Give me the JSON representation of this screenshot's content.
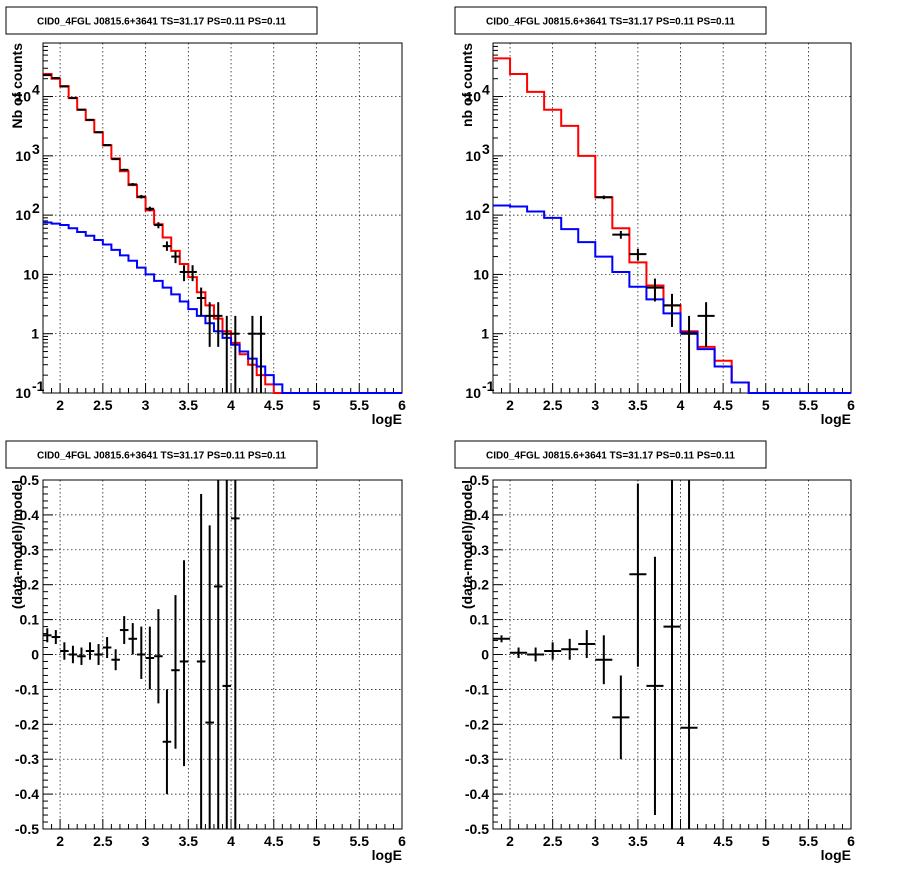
{
  "chart_data": [
    {
      "type": "line",
      "title": "CID0_4FGL J0815.6+3641 TS=31.17 PS=0.11 PS=0.11",
      "xlabel": "logE",
      "ylabel": "Nb of counts",
      "xlim": [
        1.8,
        6
      ],
      "ylim": [
        0.1,
        80000
      ],
      "yscale": "log",
      "grid": true,
      "xticks": [
        "2",
        "2.5",
        "3",
        "3.5",
        "4",
        "4.5",
        "5",
        "5.5",
        "6"
      ],
      "yticks": [
        "10^-1",
        "1",
        "10",
        "10^2",
        "10^3",
        "10^4"
      ],
      "bin_edges": [
        1.8,
        1.9,
        2.0,
        2.1,
        2.2,
        2.3,
        2.4,
        2.5,
        2.6,
        2.7,
        2.8,
        2.9,
        3.0,
        3.1,
        3.2,
        3.3,
        3.4,
        3.5,
        3.6,
        3.7,
        3.8,
        3.9,
        4.0,
        4.1,
        4.2,
        4.3,
        4.4,
        4.5,
        4.6,
        4.7,
        4.8,
        4.9,
        5.0,
        5.1,
        5.2,
        5.3,
        5.4,
        5.5,
        5.6,
        5.7,
        5.8,
        5.9,
        6.0
      ],
      "series": [
        {
          "color": "#ff0000",
          "style": "step",
          "values": [
            24000,
            20000,
            15000,
            9500,
            6000,
            4000,
            2500,
            1500,
            900,
            550,
            320,
            200,
            120,
            70,
            42,
            25,
            15,
            9,
            5,
            3,
            1.8,
            1.1,
            0.7,
            0.45,
            0.3,
            0.2,
            0.14,
            0.1,
            0.1,
            0.1,
            0.1,
            0.1,
            0.1,
            0.1,
            0.1,
            0.1,
            0.1,
            0.1,
            0.1,
            0.1,
            0.1,
            0.1
          ]
        },
        {
          "color": "#0000ff",
          "style": "step",
          "values": [
            75,
            72,
            68,
            60,
            52,
            45,
            38,
            32,
            26,
            21,
            17,
            13,
            10,
            7.8,
            6,
            4.6,
            3.5,
            2.6,
            2,
            1.5,
            1.1,
            0.85,
            0.65,
            0.5,
            0.38,
            0.28,
            0.2,
            0.14,
            0.1,
            0.1,
            0.1,
            0.1,
            0.1,
            0.1,
            0.1,
            0.1,
            0.1,
            0.1,
            0.1,
            0.1,
            0.1,
            0.1
          ]
        },
        {
          "color": "#000000",
          "style": "points",
          "points": [
            {
              "x": 1.85,
              "y": 23000,
              "ey": [
                22850,
                23150
              ]
            },
            {
              "x": 1.95,
              "y": 20500,
              "ey": [
                20350,
                20650
              ]
            },
            {
              "x": 2.05,
              "y": 14800,
              "ey": [
                14680,
                14920
              ]
            },
            {
              "x": 2.15,
              "y": 9400,
              "ey": [
                9300,
                9500
              ]
            },
            {
              "x": 2.25,
              "y": 6000,
              "ey": [
                5920,
                6080
              ]
            },
            {
              "x": 2.35,
              "y": 4050,
              "ey": [
                3990,
                4110
              ]
            },
            {
              "x": 2.45,
              "y": 2500,
              "ey": [
                2450,
                2550
              ]
            },
            {
              "x": 2.55,
              "y": 1520,
              "ey": [
                1480,
                1560
              ]
            },
            {
              "x": 2.65,
              "y": 880,
              "ey": [
                850,
                910
              ]
            },
            {
              "x": 2.75,
              "y": 580,
              "ey": [
                556,
                604
              ]
            },
            {
              "x": 2.85,
              "y": 330,
              "ey": [
                312,
                348
              ]
            },
            {
              "x": 2.95,
              "y": 205,
              "ey": [
                191,
                219
              ]
            },
            {
              "x": 3.05,
              "y": 128,
              "ey": [
                117,
                139
              ]
            },
            {
              "x": 3.15,
              "y": 68,
              "ey": [
                60,
                76
              ]
            },
            {
              "x": 3.25,
              "y": 30,
              "ey": [
                25,
                36
              ]
            },
            {
              "x": 3.35,
              "y": 20,
              "ey": [
                15.5,
                24.5
              ]
            },
            {
              "x": 3.45,
              "y": 11,
              "ey": [
                7.7,
                14.3
              ]
            },
            {
              "x": 3.55,
              "y": 11,
              "ey": [
                7.7,
                14.3
              ]
            },
            {
              "x": 3.65,
              "y": 4,
              "ey": [
                2,
                6
              ]
            },
            {
              "x": 3.75,
              "y": 2,
              "ey": [
                0.6,
                3.4
              ]
            },
            {
              "x": 3.85,
              "y": 2,
              "ey": [
                0.6,
                3.4
              ]
            },
            {
              "x": 3.95,
              "y": 1,
              "ey": [
                0.1,
                2
              ]
            },
            {
              "x": 4.05,
              "y": 1,
              "ey": [
                0.1,
                2
              ]
            },
            {
              "x": 4.25,
              "y": 1,
              "ey": [
                0.1,
                2
              ]
            },
            {
              "x": 4.35,
              "y": 1,
              "ey": [
                0.1,
                2
              ]
            }
          ]
        }
      ]
    },
    {
      "type": "line",
      "title": "CID0_4FGL J0815.6+3641 TS=31.17 PS=0.11 PS=0.11",
      "xlabel": "logE",
      "ylabel": "nb of counts",
      "xlim": [
        1.8,
        6
      ],
      "ylim": [
        0.1,
        80000
      ],
      "yscale": "log",
      "grid": true,
      "xticks": [
        "2",
        "2.5",
        "3",
        "3.5",
        "4",
        "4.5",
        "5",
        "5.5",
        "6"
      ],
      "yticks": [
        "10^-1",
        "1",
        "10",
        "10^2",
        "10^3",
        "10^4"
      ],
      "bin_edges": [
        1.8,
        2.0,
        2.2,
        2.4,
        2.6,
        2.8,
        3.0,
        3.2,
        3.4,
        3.6,
        3.8,
        4.0,
        4.2,
        4.4,
        4.6,
        4.8,
        5.0,
        5.2,
        5.4,
        5.6,
        5.8,
        6.0
      ],
      "series": [
        {
          "color": "#ff0000",
          "style": "step",
          "values": [
            44000,
            24000,
            12000,
            6000,
            3200,
            1000,
            200,
            60,
            16,
            6.5,
            3,
            1.1,
            0.6,
            0.35,
            0.15,
            0.1,
            0.1,
            0.1,
            0.1,
            0.1,
            0.1
          ]
        },
        {
          "color": "#0000ff",
          "style": "step",
          "values": [
            145,
            140,
            115,
            90,
            58,
            35,
            20,
            11,
            6.2,
            3.8,
            2.2,
            1.05,
            0.55,
            0.28,
            0.15,
            0.1,
            0.1,
            0.1,
            0.1,
            0.1,
            0.1
          ]
        },
        {
          "color": "#000000",
          "style": "points",
          "points": [
            {
              "x": 3.1,
              "y": 200,
              "ey": [
                186,
                214
              ]
            },
            {
              "x": 3.3,
              "y": 47,
              "ey": [
                40,
                54
              ]
            },
            {
              "x": 3.5,
              "y": 22,
              "ey": [
                17,
                27
              ]
            },
            {
              "x": 3.7,
              "y": 6,
              "ey": [
                3.5,
                8.5
              ]
            },
            {
              "x": 3.9,
              "y": 3,
              "ey": [
                1.3,
                4.7
              ]
            },
            {
              "x": 4.1,
              "y": 1,
              "ey": [
                0.1,
                2
              ]
            },
            {
              "x": 4.3,
              "y": 2,
              "ey": [
                0.6,
                3.4
              ]
            }
          ]
        }
      ]
    },
    {
      "type": "scatter",
      "title": "CID0_4FGL J0815.6+3641 TS=31.17 PS=0.11 PS=0.11",
      "xlabel": "logE",
      "ylabel": "(data-model)/model",
      "xlim": [
        1.8,
        6
      ],
      "ylim": [
        -0.5,
        0.5
      ],
      "grid": true,
      "xticks": [
        "2",
        "2.5",
        "3",
        "3.5",
        "4",
        "4.5",
        "5",
        "5.5",
        "6"
      ],
      "yticks": [
        "-0.5",
        "-0.4",
        "-0.3",
        "-0.2",
        "-0.1",
        "0",
        "0.1",
        "0.2",
        "0.3",
        "0.4",
        "0.5"
      ],
      "series": [
        {
          "color": "#000000",
          "points": [
            {
              "x": 1.85,
              "y": 0.055,
              "ey": [
                0.035,
                0.075
              ]
            },
            {
              "x": 1.95,
              "y": 0.05,
              "ey": [
                0.03,
                0.07
              ]
            },
            {
              "x": 2.05,
              "y": 0.01,
              "ey": [
                -0.015,
                0.035
              ]
            },
            {
              "x": 2.15,
              "y": 0.0,
              "ey": [
                -0.025,
                0.025
              ]
            },
            {
              "x": 2.25,
              "y": -0.005,
              "ey": [
                -0.03,
                0.02
              ]
            },
            {
              "x": 2.35,
              "y": 0.01,
              "ey": [
                -0.015,
                0.035
              ]
            },
            {
              "x": 2.45,
              "y": 0.0,
              "ey": [
                -0.03,
                0.03
              ]
            },
            {
              "x": 2.55,
              "y": 0.02,
              "ey": [
                -0.01,
                0.05
              ]
            },
            {
              "x": 2.65,
              "y": -0.015,
              "ey": [
                -0.045,
                0.015
              ]
            },
            {
              "x": 2.75,
              "y": 0.07,
              "ey": [
                0.03,
                0.11
              ]
            },
            {
              "x": 2.85,
              "y": 0.045,
              "ey": [
                0.0,
                0.09
              ]
            },
            {
              "x": 2.95,
              "y": 0.0,
              "ey": [
                -0.07,
                0.08
              ]
            },
            {
              "x": 3.05,
              "y": -0.01,
              "ey": [
                -0.1,
                0.08
              ]
            },
            {
              "x": 3.15,
              "y": -0.005,
              "ey": [
                -0.14,
                0.13
              ]
            },
            {
              "x": 3.25,
              "y": -0.25,
              "ey": [
                -0.4,
                -0.1
              ]
            },
            {
              "x": 3.35,
              "y": -0.045,
              "ey": [
                -0.27,
                0.17
              ]
            },
            {
              "x": 3.45,
              "y": -0.02,
              "ey": [
                -0.32,
                0.27
              ]
            },
            {
              "x": 3.65,
              "y": -0.02,
              "ey": [
                -0.5,
                0.46
              ]
            },
            {
              "x": 3.75,
              "y": -0.195,
              "ey": [
                -0.5,
                0.37
              ]
            },
            {
              "x": 3.85,
              "y": 0.195,
              "ey": [
                -0.5,
                0.5
              ]
            },
            {
              "x": 3.95,
              "y": -0.09,
              "ey": [
                -0.5,
                0.5
              ]
            },
            {
              "x": 4.05,
              "y": 0.39,
              "ey": [
                -0.5,
                0.5
              ]
            }
          ]
        }
      ]
    },
    {
      "type": "scatter",
      "title": "CID0_4FGL J0815.6+3641 TS=31.17 PS=0.11 PS=0.11",
      "xlabel": "logE",
      "ylabel": "(data-model)/model",
      "xlim": [
        1.8,
        6
      ],
      "ylim": [
        -0.5,
        0.5
      ],
      "grid": true,
      "xticks": [
        "2",
        "2.5",
        "3",
        "3.5",
        "4",
        "4.5",
        "5",
        "5.5",
        "6"
      ],
      "yticks": [
        "-0.5",
        "-0.4",
        "-0.3",
        "-0.2",
        "-0.1",
        "0",
        "0.1",
        "0.2",
        "0.3",
        "0.4",
        "0.5"
      ],
      "series": [
        {
          "color": "#000000",
          "points": [
            {
              "x": 1.9,
              "y": 0.045,
              "ey": [
                0.035,
                0.055
              ]
            },
            {
              "x": 2.1,
              "y": 0.005,
              "ey": [
                -0.01,
                0.02
              ]
            },
            {
              "x": 2.3,
              "y": 0.0,
              "ey": [
                -0.02,
                0.02
              ]
            },
            {
              "x": 2.5,
              "y": 0.01,
              "ey": [
                -0.015,
                0.035
              ]
            },
            {
              "x": 2.7,
              "y": 0.015,
              "ey": [
                -0.015,
                0.045
              ]
            },
            {
              "x": 2.9,
              "y": 0.03,
              "ey": [
                -0.01,
                0.07
              ]
            },
            {
              "x": 3.1,
              "y": -0.015,
              "ey": [
                -0.085,
                0.055
              ]
            },
            {
              "x": 3.3,
              "y": -0.18,
              "ey": [
                -0.3,
                -0.06
              ]
            },
            {
              "x": 3.5,
              "y": 0.23,
              "ey": [
                -0.035,
                0.49
              ]
            },
            {
              "x": 3.7,
              "y": -0.09,
              "ey": [
                -0.46,
                0.28
              ]
            },
            {
              "x": 3.9,
              "y": 0.08,
              "ey": [
                -0.5,
                0.5
              ]
            },
            {
              "x": 4.1,
              "y": -0.21,
              "ey": [
                -0.5,
                0.5
              ]
            }
          ]
        }
      ]
    }
  ]
}
